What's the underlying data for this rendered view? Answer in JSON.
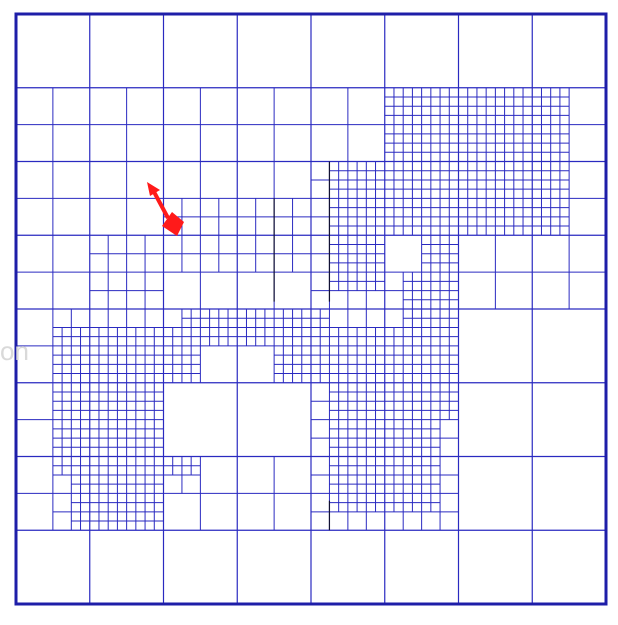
{
  "figure": {
    "description_text": "",
    "watermark_text": "on",
    "colors": {
      "background": "#ffffff",
      "grid_line": "#2a2ac0",
      "border": "#1e1ea8",
      "dark_line": "#111133",
      "agent": "#ff1a1a"
    },
    "agent": {
      "icon": "red-arrow-robot-icon",
      "heading": "up-left"
    },
    "grid_depth": {
      "coarse_cells": 8,
      "max_refinement": 4
    }
  }
}
